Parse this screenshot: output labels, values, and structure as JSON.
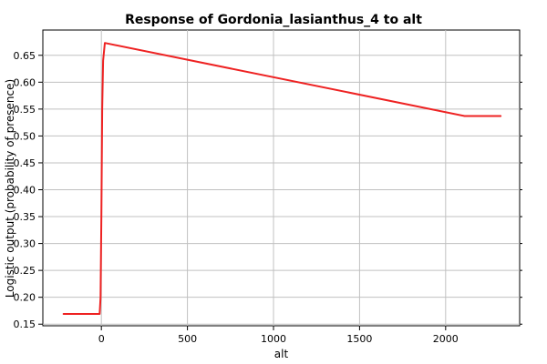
{
  "chart_data": {
    "type": "line",
    "title": "Response of Gordonia_lasianthus_4 to alt",
    "xlabel": "alt",
    "ylabel": "Logistic output (probability of presence)",
    "xlim": [
      -340,
      2430
    ],
    "ylim": [
      0.147,
      0.697
    ],
    "xticks": [
      0,
      500,
      1000,
      1500,
      2000
    ],
    "xtick_labels": [
      "0",
      "500",
      "1000",
      "1500",
      "2000"
    ],
    "yticks": [
      0.15,
      0.2,
      0.25,
      0.3,
      0.35,
      0.4,
      0.45,
      0.5,
      0.55,
      0.6,
      0.65
    ],
    "ytick_labels": [
      "0.15",
      "0.20",
      "0.25",
      "0.30",
      "0.35",
      "0.40",
      "0.45",
      "0.50",
      "0.55",
      "0.60",
      "0.65"
    ],
    "grid": true,
    "series": [
      {
        "color": "#ee2222",
        "x": [
          -220,
          -10,
          -5,
          0,
          5,
          10,
          20,
          2110,
          2320
        ],
        "y": [
          0.169,
          0.169,
          0.2,
          0.35,
          0.55,
          0.64,
          0.673,
          0.537,
          0.537
        ]
      }
    ]
  }
}
